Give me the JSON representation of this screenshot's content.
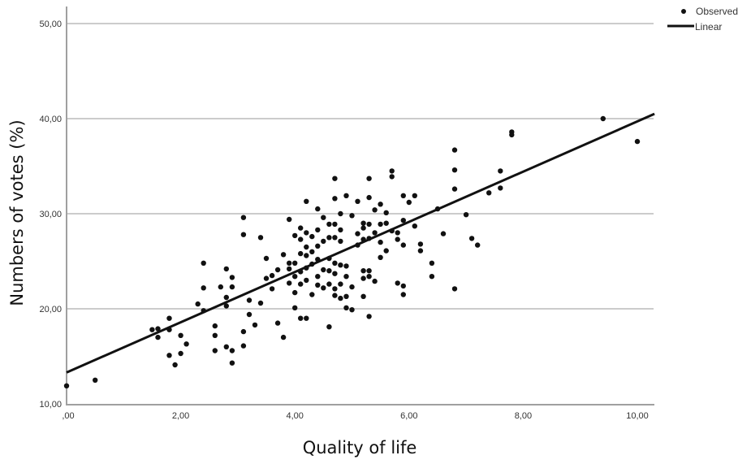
{
  "chart_data": {
    "type": "scatter",
    "title": "",
    "xlabel": "Quality of life",
    "ylabel": "Numbers of votes (%)",
    "xlim": [
      0,
      10.3
    ],
    "ylim": [
      10,
      52
    ],
    "x_ticks": [
      0,
      2,
      4,
      6,
      8,
      10
    ],
    "x_tick_labels": [
      ",00",
      "2,00",
      "4,00",
      "6,00",
      "8,00",
      "10,00"
    ],
    "y_ticks": [
      10,
      20,
      30,
      40,
      50
    ],
    "y_tick_labels": [
      "10,00",
      "20,00",
      "30,00",
      "40,00",
      "50,00"
    ],
    "grid": "horizontal",
    "legend": {
      "position": "top-right",
      "entries": [
        {
          "label": "Observed",
          "marker": "dot"
        },
        {
          "label": "Linear",
          "marker": "line"
        }
      ]
    },
    "series": [
      {
        "name": "Observed",
        "type": "scatter",
        "points": [
          [
            0.0,
            11.9
          ],
          [
            0.5,
            12.5
          ],
          [
            1.5,
            17.8
          ],
          [
            1.6,
            17.9
          ],
          [
            1.6,
            17.0
          ],
          [
            1.8,
            19.0
          ],
          [
            1.8,
            17.8
          ],
          [
            1.8,
            15.1
          ],
          [
            1.9,
            14.1
          ],
          [
            2.0,
            17.2
          ],
          [
            2.0,
            15.3
          ],
          [
            2.1,
            16.3
          ],
          [
            2.3,
            20.5
          ],
          [
            2.4,
            24.8
          ],
          [
            2.4,
            22.2
          ],
          [
            2.4,
            19.8
          ],
          [
            2.6,
            18.2
          ],
          [
            2.6,
            17.2
          ],
          [
            2.6,
            15.6
          ],
          [
            2.7,
            22.3
          ],
          [
            2.8,
            24.2
          ],
          [
            2.8,
            21.2
          ],
          [
            2.8,
            20.3
          ],
          [
            2.8,
            16.0
          ],
          [
            2.9,
            23.3
          ],
          [
            2.9,
            22.3
          ],
          [
            2.9,
            15.6
          ],
          [
            2.9,
            14.3
          ],
          [
            3.1,
            29.6
          ],
          [
            3.1,
            27.8
          ],
          [
            3.1,
            17.6
          ],
          [
            3.1,
            16.1
          ],
          [
            3.2,
            20.9
          ],
          [
            3.2,
            19.4
          ],
          [
            3.3,
            18.3
          ],
          [
            3.4,
            27.5
          ],
          [
            3.4,
            20.6
          ],
          [
            3.5,
            25.3
          ],
          [
            3.5,
            23.2
          ],
          [
            3.6,
            23.5
          ],
          [
            3.6,
            22.1
          ],
          [
            3.7,
            24.1
          ],
          [
            3.7,
            18.5
          ],
          [
            3.8,
            25.7
          ],
          [
            3.8,
            17.0
          ],
          [
            3.9,
            29.4
          ],
          [
            3.9,
            24.8
          ],
          [
            3.9,
            24.2
          ],
          [
            3.9,
            22.7
          ],
          [
            4.0,
            27.7
          ],
          [
            4.0,
            24.8
          ],
          [
            4.0,
            23.4
          ],
          [
            4.0,
            21.7
          ],
          [
            4.0,
            20.1
          ],
          [
            4.1,
            28.5
          ],
          [
            4.1,
            27.3
          ],
          [
            4.1,
            25.8
          ],
          [
            4.1,
            23.9
          ],
          [
            4.1,
            22.6
          ],
          [
            4.1,
            19.0
          ],
          [
            4.2,
            31.3
          ],
          [
            4.2,
            28.0
          ],
          [
            4.2,
            26.5
          ],
          [
            4.2,
            25.6
          ],
          [
            4.2,
            24.3
          ],
          [
            4.2,
            23.0
          ],
          [
            4.2,
            19.0
          ],
          [
            4.3,
            27.6
          ],
          [
            4.3,
            26.0
          ],
          [
            4.3,
            24.7
          ],
          [
            4.3,
            21.5
          ],
          [
            4.4,
            30.5
          ],
          [
            4.4,
            28.3
          ],
          [
            4.4,
            26.6
          ],
          [
            4.4,
            25.2
          ],
          [
            4.4,
            23.4
          ],
          [
            4.4,
            22.5
          ],
          [
            4.5,
            29.6
          ],
          [
            4.5,
            27.1
          ],
          [
            4.5,
            24.1
          ],
          [
            4.5,
            22.2
          ],
          [
            4.6,
            28.9
          ],
          [
            4.6,
            27.5
          ],
          [
            4.6,
            25.3
          ],
          [
            4.6,
            24.0
          ],
          [
            4.6,
            22.6
          ],
          [
            4.6,
            18.1
          ],
          [
            4.7,
            33.7
          ],
          [
            4.7,
            31.6
          ],
          [
            4.7,
            28.9
          ],
          [
            4.7,
            27.5
          ],
          [
            4.7,
            24.8
          ],
          [
            4.7,
            23.7
          ],
          [
            4.7,
            22.1
          ],
          [
            4.7,
            21.4
          ],
          [
            4.8,
            30.0
          ],
          [
            4.8,
            28.3
          ],
          [
            4.8,
            27.1
          ],
          [
            4.8,
            24.6
          ],
          [
            4.8,
            22.6
          ],
          [
            4.8,
            21.1
          ],
          [
            4.9,
            31.9
          ],
          [
            4.9,
            24.5
          ],
          [
            4.9,
            23.4
          ],
          [
            4.9,
            21.3
          ],
          [
            4.9,
            20.1
          ],
          [
            5.0,
            29.8
          ],
          [
            5.0,
            22.3
          ],
          [
            5.0,
            19.9
          ],
          [
            5.1,
            31.3
          ],
          [
            5.1,
            27.9
          ],
          [
            5.1,
            26.7
          ],
          [
            5.2,
            29.0
          ],
          [
            5.2,
            28.5
          ],
          [
            5.2,
            27.3
          ],
          [
            5.2,
            24.0
          ],
          [
            5.2,
            23.2
          ],
          [
            5.2,
            21.3
          ],
          [
            5.3,
            33.7
          ],
          [
            5.3,
            31.7
          ],
          [
            5.3,
            28.9
          ],
          [
            5.3,
            27.4
          ],
          [
            5.3,
            24.0
          ],
          [
            5.3,
            23.4
          ],
          [
            5.3,
            19.2
          ],
          [
            5.4,
            30.4
          ],
          [
            5.4,
            28.0
          ],
          [
            5.4,
            22.9
          ],
          [
            5.5,
            31.0
          ],
          [
            5.5,
            28.9
          ],
          [
            5.5,
            27.0
          ],
          [
            5.5,
            25.4
          ],
          [
            5.6,
            30.1
          ],
          [
            5.6,
            29.0
          ],
          [
            5.6,
            26.1
          ],
          [
            5.7,
            34.5
          ],
          [
            5.7,
            33.9
          ],
          [
            5.7,
            28.2
          ],
          [
            5.8,
            28.0
          ],
          [
            5.8,
            27.3
          ],
          [
            5.8,
            22.7
          ],
          [
            5.9,
            31.9
          ],
          [
            5.9,
            29.3
          ],
          [
            5.9,
            26.7
          ],
          [
            5.9,
            22.4
          ],
          [
            5.9,
            21.5
          ],
          [
            6.0,
            31.2
          ],
          [
            6.1,
            31.9
          ],
          [
            6.1,
            28.7
          ],
          [
            6.2,
            26.8
          ],
          [
            6.2,
            26.1
          ],
          [
            6.4,
            24.8
          ],
          [
            6.4,
            23.4
          ],
          [
            6.5,
            30.5
          ],
          [
            6.6,
            27.9
          ],
          [
            6.8,
            36.7
          ],
          [
            6.8,
            34.6
          ],
          [
            6.8,
            32.6
          ],
          [
            6.8,
            22.1
          ],
          [
            7.0,
            29.9
          ],
          [
            7.1,
            27.4
          ],
          [
            7.2,
            26.7
          ],
          [
            7.4,
            32.2
          ],
          [
            7.6,
            34.5
          ],
          [
            7.6,
            32.7
          ],
          [
            7.8,
            38.6
          ],
          [
            7.8,
            38.3
          ],
          [
            9.4,
            40.0
          ],
          [
            10.0,
            37.6
          ]
        ]
      },
      {
        "name": "Linear",
        "type": "line",
        "points": [
          [
            0.0,
            13.3
          ],
          [
            10.3,
            40.5
          ]
        ]
      }
    ]
  },
  "colors": {
    "marker": "#111111",
    "fit_line": "#111111",
    "grid": "#cccccc",
    "axis": "#999999",
    "background": "#ffffff"
  }
}
